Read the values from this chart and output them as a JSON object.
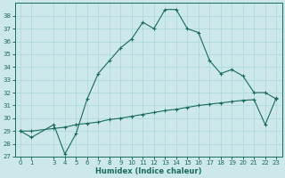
{
  "xlabel": "Humidex (Indice chaleur)",
  "ylabel": "",
  "bg_color": "#cce8ea",
  "grid_color": "#b0d8dc",
  "line_color": "#1a6b5a",
  "xlim": [
    -0.5,
    23.5
  ],
  "ylim": [
    27,
    39
  ],
  "yticks": [
    27,
    28,
    29,
    30,
    31,
    32,
    33,
    34,
    35,
    36,
    37,
    38
  ],
  "xticks": [
    0,
    1,
    3,
    4,
    5,
    6,
    7,
    8,
    9,
    10,
    11,
    12,
    13,
    14,
    15,
    16,
    17,
    18,
    19,
    20,
    21,
    22,
    23
  ],
  "curve1_x": [
    0,
    1,
    3,
    4,
    5,
    6,
    7,
    8,
    9,
    10,
    11,
    12,
    13,
    14,
    15,
    16,
    17,
    18,
    19,
    20,
    21,
    22,
    23
  ],
  "curve1_y": [
    29.0,
    28.5,
    29.5,
    27.2,
    28.8,
    31.5,
    33.5,
    34.5,
    35.5,
    36.2,
    37.5,
    37.0,
    38.5,
    38.5,
    37.0,
    36.7,
    34.5,
    33.5,
    33.8,
    33.3,
    32.0,
    32.0,
    31.5
  ],
  "curve2_x": [
    0,
    1,
    3,
    4,
    5,
    6,
    7,
    8,
    9,
    10,
    11,
    12,
    13,
    14,
    15,
    16,
    17,
    18,
    19,
    20,
    21,
    22,
    23
  ],
  "curve2_y": [
    29.0,
    29.0,
    29.2,
    29.3,
    29.5,
    29.6,
    29.7,
    29.9,
    30.0,
    30.15,
    30.3,
    30.45,
    30.6,
    30.7,
    30.85,
    31.0,
    31.1,
    31.2,
    31.3,
    31.4,
    31.45,
    29.5,
    31.6
  ]
}
